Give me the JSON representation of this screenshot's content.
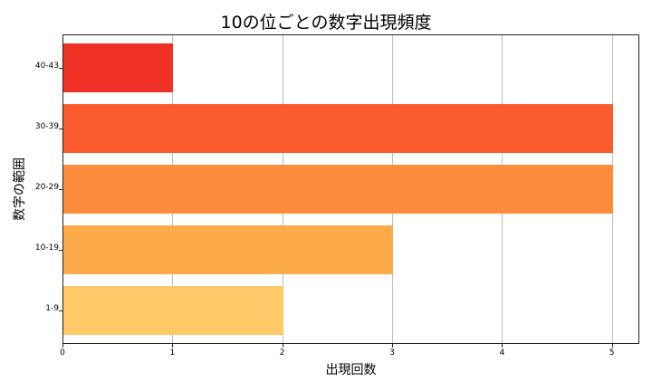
{
  "chart_data": {
    "type": "bar",
    "orientation": "horizontal",
    "title": "10の位ごとの数字出現頻度",
    "xlabel": "出現回数",
    "ylabel": "数字の範囲",
    "categories": [
      "1-9",
      "10-19",
      "20-29",
      "30-39",
      "40-43"
    ],
    "values": [
      2,
      3,
      5,
      5,
      1
    ],
    "colors": [
      "#fec966",
      "#fdaa4a",
      "#fd8d3c",
      "#fc5a2f",
      "#ef3024"
    ],
    "xlim": [
      0,
      5.25
    ],
    "xticks": [
      "0",
      "1",
      "2",
      "3",
      "4",
      "5"
    ],
    "grid": "x"
  }
}
